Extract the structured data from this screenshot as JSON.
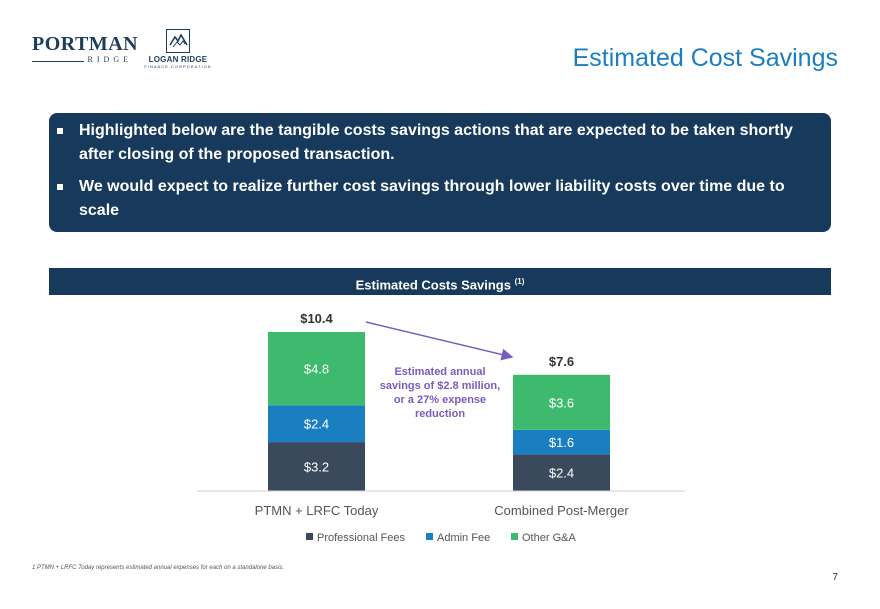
{
  "header": {
    "portman_logo_main": "PORTMAN",
    "portman_logo_sub": "RIDGE",
    "logan_logo_main": "LOGAN RIDGE",
    "logan_logo_sub": "FINANCE CORPORATION",
    "title": "Estimated Cost Savings"
  },
  "callout": {
    "bullets": [
      "Highlighted below are the tangible costs savings actions that are expected to be taken shortly after closing of the proposed transaction.",
      "We would expect to realize further cost savings through lower liability costs over time due to scale"
    ]
  },
  "banner": {
    "title": "Estimated Costs Savings",
    "superscript": "(1)"
  },
  "annotation": {
    "lines": [
      "Estimated annual",
      "savings of $2.8 million,",
      "or a 27% expense",
      "reduction"
    ]
  },
  "footnote": "1 PTMN + LRFC Today represents estimated annual expenses for each on a standalone basis.",
  "page_number": "7",
  "colors": {
    "professional_fees": "#3a4a5c",
    "admin_fee": "#1a7fc1",
    "other_ga": "#3dba6e",
    "arrow": "#7b5bbd",
    "dark_navy": "#173a5c",
    "title_blue": "#1a7fc1"
  },
  "chart_data": {
    "type": "bar",
    "stacked": true,
    "categories": [
      "PTMN + LRFC Today",
      "Combined Post-Merger"
    ],
    "series": [
      {
        "name": "Professional Fees",
        "values": [
          3.2,
          2.4
        ],
        "labels": [
          "$3.2",
          "$2.4"
        ],
        "color": "#3a4a5c"
      },
      {
        "name": "Admin Fee",
        "values": [
          2.4,
          1.6
        ],
        "labels": [
          "$2.4",
          "$1.6"
        ],
        "color": "#1a7fc1"
      },
      {
        "name": "Other G&A",
        "values": [
          4.8,
          3.6
        ],
        "labels": [
          "$4.8",
          "$3.6"
        ],
        "color": "#3dba6e"
      }
    ],
    "totals": [
      "$10.4",
      "$7.6"
    ],
    "total_values": [
      10.4,
      7.6
    ],
    "ylim": [
      0,
      10.4
    ],
    "grid": false,
    "legend_position": "bottom"
  }
}
